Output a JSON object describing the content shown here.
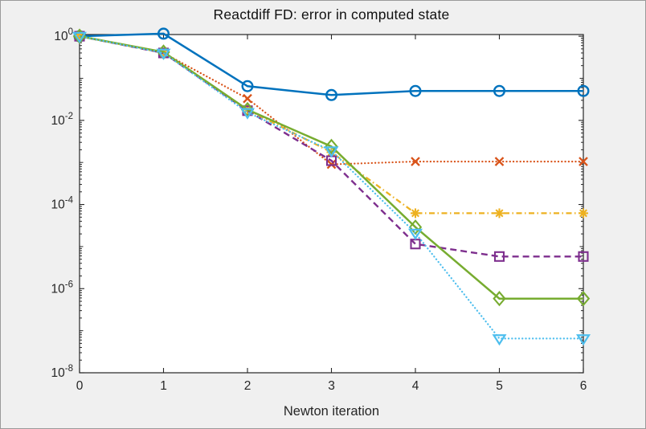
{
  "figure": {
    "background_color": "#f0f0f0",
    "plot_background_color": "#ffffff",
    "axis_color": "#262626",
    "tick_label_color": "#262626",
    "title_color": "#111111"
  },
  "chart_data": {
    "type": "line",
    "title": "Reactdiff FD: error in computed state",
    "xlabel": "Newton iteration",
    "ylabel": "",
    "yscale": "log",
    "grid": false,
    "legend": "none",
    "xlim": [
      0,
      6
    ],
    "ylim_log10": [
      -8,
      0.04
    ],
    "x": [
      0,
      1,
      2,
      3,
      4,
      5,
      6
    ],
    "xtick_labels": [
      "0",
      "1",
      "2",
      "3",
      "4",
      "5",
      "6"
    ],
    "yticks": [
      {
        "exp": 0,
        "base": "10",
        "sup": "0"
      },
      {
        "exp": -2,
        "base": "10",
        "sup": "-2"
      },
      {
        "exp": -4,
        "base": "10",
        "sup": "-4"
      },
      {
        "exp": -6,
        "base": "10",
        "sup": "-6"
      },
      {
        "exp": -8,
        "base": "10",
        "sup": "-8"
      }
    ],
    "series": [
      {
        "name": "series-1-circle",
        "color": "#0072BD",
        "marker": "circle",
        "linestyle": "solid",
        "values": [
          1.0,
          1.15,
          0.065,
          0.04,
          0.05,
          0.05,
          0.05
        ]
      },
      {
        "name": "series-2-x",
        "color": "#D95319",
        "marker": "x",
        "linestyle": "dotted",
        "values": [
          1.0,
          0.4,
          0.033,
          0.0009,
          0.00105,
          0.00105,
          0.00105
        ]
      },
      {
        "name": "series-3-asterisk",
        "color": "#EDB120",
        "marker": "asterisk",
        "linestyle": "dashdot",
        "values": [
          1.0,
          0.4,
          0.018,
          0.00175,
          6.2e-05,
          6.2e-05,
          6.2e-05
        ]
      },
      {
        "name": "series-4-square",
        "color": "#7E2F8E",
        "marker": "square",
        "linestyle": "dashed",
        "values": [
          1.0,
          0.4,
          0.017,
          0.0011,
          1.15e-05,
          5.8e-06,
          5.8e-06
        ]
      },
      {
        "name": "series-5-diamond",
        "color": "#77AC30",
        "marker": "diamond",
        "linestyle": "solid",
        "values": [
          1.0,
          0.42,
          0.018,
          0.0024,
          2.9e-05,
          5.8e-07,
          5.8e-07
        ]
      },
      {
        "name": "series-6-triangle",
        "color": "#4DBEEE",
        "marker": "triangle-down",
        "linestyle": "dotted",
        "values": [
          1.0,
          0.4,
          0.0155,
          0.0019,
          2.1e-05,
          6.5e-08,
          6.5e-08
        ]
      }
    ]
  }
}
